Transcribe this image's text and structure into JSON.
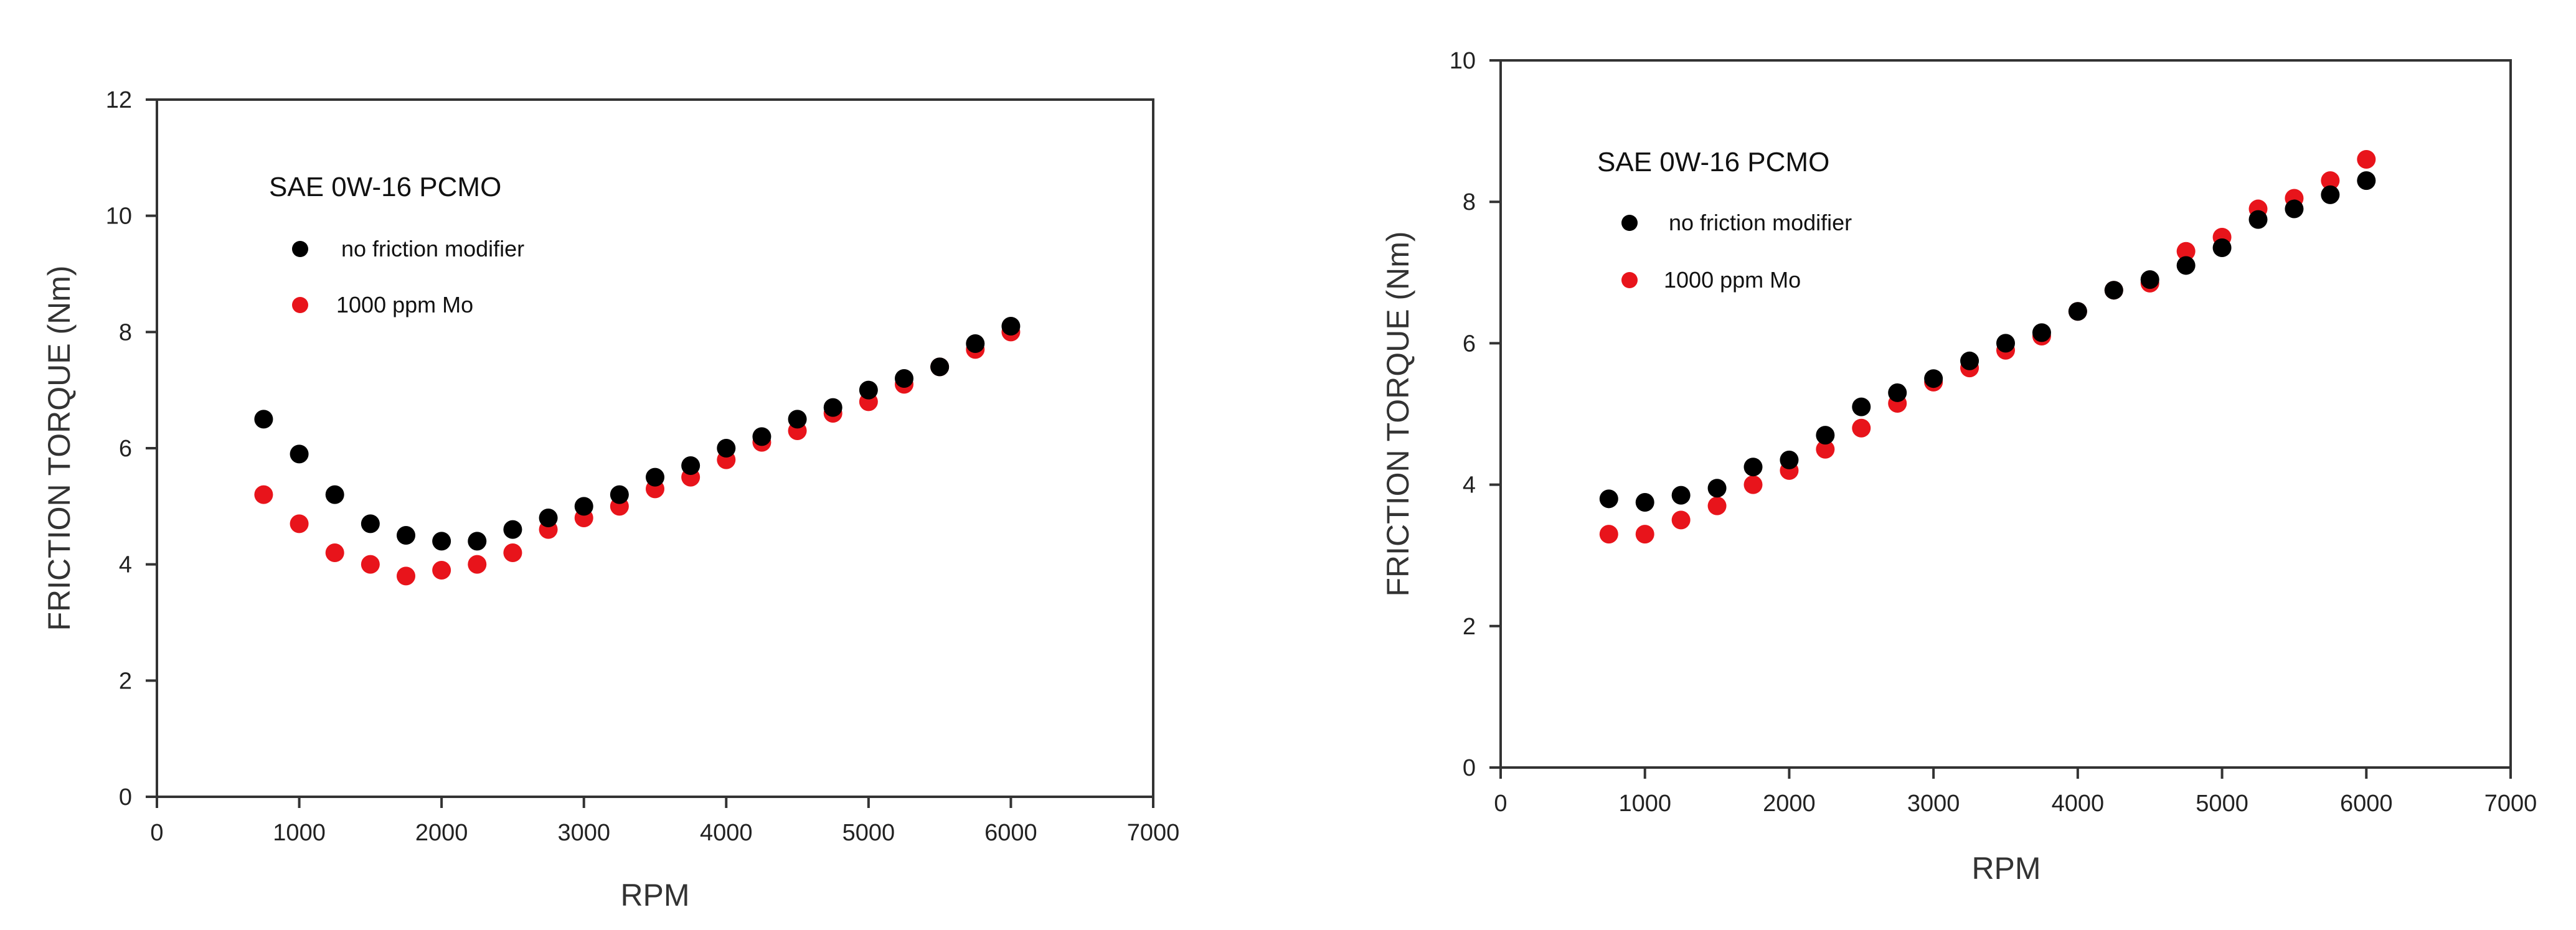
{
  "chart_data": [
    {
      "type": "scatter",
      "title": "SAE 0W-16 PCMO",
      "xlabel": "RPM",
      "ylabel": "FRICTION TORQUE (Nm)",
      "xlim": [
        0,
        7000
      ],
      "ylim": [
        0,
        12
      ],
      "xticks": [
        0,
        1000,
        2000,
        3000,
        4000,
        5000,
        6000,
        7000
      ],
      "yticks": [
        0,
        2,
        4,
        6,
        8,
        10,
        12
      ],
      "legend_position": "top-left",
      "series": [
        {
          "name": "no friction modifier",
          "color": "#000000",
          "x": [
            750,
            1000,
            1250,
            1500,
            1750,
            2000,
            2250,
            2500,
            2750,
            3000,
            3250,
            3500,
            3750,
            4000,
            4250,
            4500,
            4750,
            5000,
            5250,
            5500,
            5750,
            6000
          ],
          "y": [
            6.5,
            5.9,
            5.2,
            4.7,
            4.5,
            4.4,
            4.4,
            4.6,
            4.8,
            5.0,
            5.2,
            5.5,
            5.7,
            6.0,
            6.2,
            6.5,
            6.7,
            7.0,
            7.2,
            7.4,
            7.8,
            8.1
          ]
        },
        {
          "name": "1000 ppm Mo",
          "color": "#e8141b",
          "x": [
            750,
            1000,
            1250,
            1500,
            1750,
            2000,
            2250,
            2500,
            2750,
            3000,
            3250,
            3500,
            3750,
            4000,
            4250,
            4500,
            4750,
            5000,
            5250,
            5500,
            5750,
            6000
          ],
          "y": [
            5.2,
            4.7,
            4.2,
            4.0,
            3.8,
            3.9,
            4.0,
            4.2,
            4.6,
            4.8,
            5.0,
            5.3,
            5.5,
            5.8,
            6.1,
            6.3,
            6.6,
            6.8,
            7.1,
            7.4,
            7.7,
            8.0
          ]
        }
      ]
    },
    {
      "type": "scatter",
      "title": "SAE 0W-16 PCMO",
      "xlabel": "RPM",
      "ylabel": "FRICTION TORQUE (Nm)",
      "xlim": [
        0,
        7000
      ],
      "ylim": [
        0,
        10
      ],
      "xticks": [
        0,
        1000,
        2000,
        3000,
        4000,
        5000,
        6000,
        7000
      ],
      "yticks": [
        0,
        2,
        4,
        6,
        8,
        10
      ],
      "legend_position": "top-left",
      "series": [
        {
          "name": "no friction modifier",
          "color": "#000000",
          "x": [
            750,
            1000,
            1250,
            1500,
            1750,
            2000,
            2250,
            2500,
            2750,
            3000,
            3250,
            3500,
            3750,
            4000,
            4250,
            4500,
            4750,
            5000,
            5250,
            5500,
            5750,
            6000
          ],
          "y": [
            3.8,
            3.75,
            3.85,
            3.95,
            4.25,
            4.35,
            4.7,
            5.1,
            5.3,
            5.5,
            5.75,
            6.0,
            6.15,
            6.45,
            6.75,
            6.9,
            7.1,
            7.35,
            7.75,
            7.9,
            8.1,
            8.3
          ]
        },
        {
          "name": "1000 ppm Mo",
          "color": "#e8141b",
          "x": [
            750,
            1000,
            1250,
            1500,
            1750,
            2000,
            2250,
            2500,
            2750,
            3000,
            3250,
            3500,
            3750,
            4000,
            4250,
            4500,
            4750,
            5000,
            5250,
            5500,
            5750,
            6000
          ],
          "y": [
            3.3,
            3.3,
            3.5,
            3.7,
            4.0,
            4.2,
            4.5,
            4.8,
            5.15,
            5.45,
            5.65,
            5.9,
            6.1,
            6.45,
            6.75,
            6.85,
            7.3,
            7.5,
            7.9,
            8.05,
            8.3,
            8.6
          ]
        }
      ]
    }
  ]
}
